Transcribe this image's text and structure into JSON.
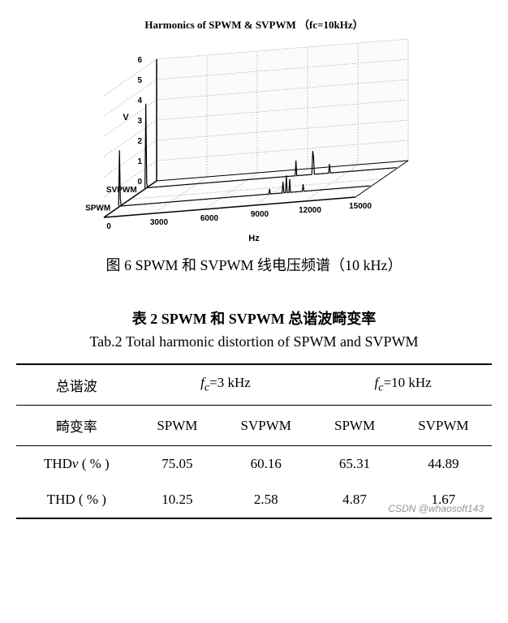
{
  "figure": {
    "title": "Harmonics of SPWM & SVPWM （fc=10kHz）",
    "type": "3d-line-spectrum",
    "y_axis": {
      "label": "V",
      "ticks": [
        0,
        1,
        2,
        3,
        4,
        5,
        6
      ],
      "lim": [
        0,
        6
      ],
      "fontsize": 11
    },
    "x_axis": {
      "label": "Hz",
      "ticks": [
        0,
        3000,
        6000,
        9000,
        12000,
        15000
      ],
      "lim": [
        0,
        15000
      ],
      "fontsize": 11
    },
    "depth_axis": {
      "labels": [
        "SVPWM",
        "SPWM"
      ]
    },
    "colors": {
      "line": "#000000",
      "grid": "#888888",
      "background": "#ffffff",
      "wall": "#f4f4f4"
    },
    "grid": {
      "on": true,
      "style": "dotted"
    },
    "series": [
      {
        "name": "SVPWM",
        "row": 0,
        "peaks": [
          {
            "hz": 50,
            "v": 4.2
          },
          {
            "hz": 100,
            "v": 0.3
          },
          {
            "hz": 9000,
            "v": 0.8
          },
          {
            "hz": 10000,
            "v": 1.2
          },
          {
            "hz": 10050,
            "v": 0.9
          },
          {
            "hz": 11000,
            "v": 0.5
          }
        ],
        "baseline": 0.05
      },
      {
        "name": "SPWM",
        "row": 1,
        "peaks": [
          {
            "hz": 50,
            "v": 2.8
          },
          {
            "hz": 100,
            "v": 0.4
          },
          {
            "hz": 9000,
            "v": 0.3
          },
          {
            "hz": 9800,
            "v": 0.6
          },
          {
            "hz": 10000,
            "v": 0.9
          },
          {
            "hz": 10200,
            "v": 0.7
          },
          {
            "hz": 11000,
            "v": 0.4
          }
        ],
        "baseline": 0.05
      }
    ],
    "caption_cn": "图 6    SPWM 和 SVPWM 线电压频谱（10 kHz）"
  },
  "table": {
    "title_cn": "表 2   SPWM 和 SVPWM 总谐波畸变率",
    "title_en": "Tab.2   Total harmonic distortion of SPWM and SVPWM",
    "header_row1": {
      "col1": "总谐波",
      "group1": "fc=3 kHz",
      "group2": "fc=10 kHz"
    },
    "header_row2": {
      "col1": "畸变率",
      "cols": [
        "SPWM",
        "SVPWM",
        "SPWM",
        "SVPWM"
      ]
    },
    "rows": [
      {
        "label": "THDv ( % )",
        "values": [
          "75.05",
          "60.16",
          "65.31",
          "44.89"
        ]
      },
      {
        "label": "THD ( % )",
        "values": [
          "10.25",
          "2.58",
          "4.87",
          "1.67"
        ]
      }
    ]
  },
  "watermark": "CSDN @whaosoft143"
}
